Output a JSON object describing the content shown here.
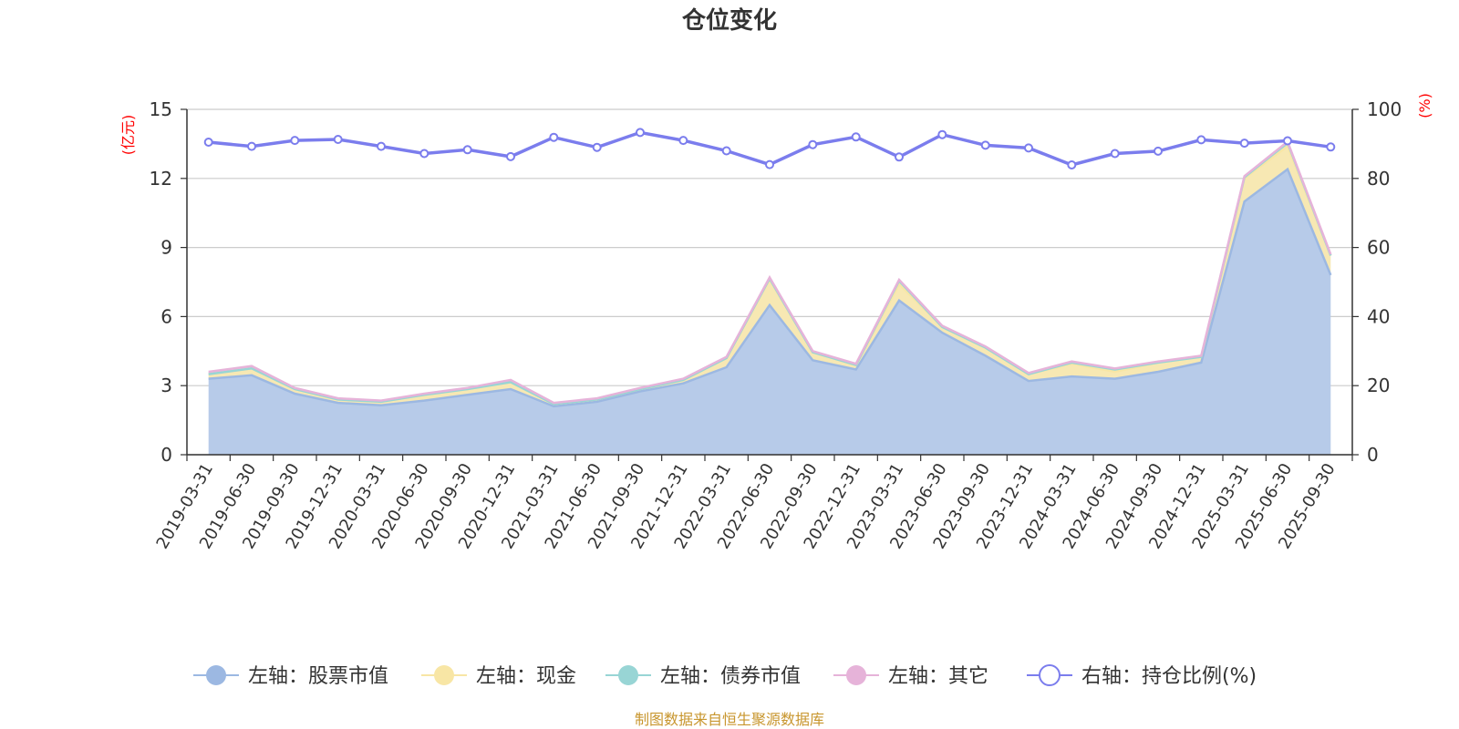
{
  "chart_data": {
    "type": "area",
    "title": "仓位变化",
    "left_axis_unit": "(亿元)",
    "right_axis_unit": "(%)",
    "categories": [
      "2019-03-31",
      "2019-06-30",
      "2019-09-30",
      "2019-12-31",
      "2020-03-31",
      "2020-06-30",
      "2020-09-30",
      "2020-12-31",
      "2021-03-31",
      "2021-06-30",
      "2021-09-30",
      "2021-12-31",
      "2022-03-31",
      "2022-06-30",
      "2022-09-30",
      "2022-12-31",
      "2023-03-31",
      "2023-06-30",
      "2023-09-30",
      "2023-12-31",
      "2024-03-31",
      "2024-06-30",
      "2024-09-30",
      "2024-12-31",
      "2025-03-31",
      "2025-06-30",
      "2025-09-30"
    ],
    "left_ylim": [
      0,
      15
    ],
    "left_ticks": [
      "0",
      "3",
      "6",
      "9",
      "12",
      "15"
    ],
    "right_ylim": [
      0,
      100
    ],
    "right_ticks": [
      "0",
      "20",
      "40",
      "60",
      "80",
      "100"
    ],
    "grid": true,
    "legend_position": "bottom",
    "series": [
      {
        "name": "左轴：股票市值",
        "axis": "left",
        "stacked": true,
        "color": "#9cb8e2",
        "fill": "#b7cbe9",
        "values": [
          3.3,
          3.45,
          2.65,
          2.25,
          2.15,
          2.35,
          2.6,
          2.85,
          2.1,
          2.3,
          2.75,
          3.1,
          3.8,
          6.5,
          4.1,
          3.7,
          6.7,
          5.3,
          4.3,
          3.2,
          3.4,
          3.3,
          3.6,
          4.0,
          11.0,
          12.4,
          7.8
        ]
      },
      {
        "name": "左轴：现金",
        "axis": "left",
        "stacked": true,
        "color": "#f8e6a5",
        "fill": "#f7e8b3",
        "values": [
          0.2,
          0.3,
          0.2,
          0.15,
          0.15,
          0.25,
          0.25,
          0.3,
          0.1,
          0.1,
          0.1,
          0.15,
          0.4,
          1.1,
          0.35,
          0.2,
          0.7,
          0.25,
          0.35,
          0.3,
          0.55,
          0.3,
          0.4,
          0.25,
          1.0,
          1.0,
          0.85
        ]
      },
      {
        "name": "左轴：债券市值",
        "axis": "left",
        "stacked": true,
        "color": "#98d5d5",
        "fill": "#a9dcd9",
        "values": [
          0.0,
          0.0,
          0.0,
          0.0,
          0.0,
          0.0,
          0.0,
          0.0,
          0.0,
          0.0,
          0.0,
          0.0,
          0.0,
          0.05,
          0.0,
          0.0,
          0.15,
          0.0,
          0.0,
          0.0,
          0.05,
          0.1,
          0.0,
          0.0,
          0.05,
          0.15,
          0.0
        ]
      },
      {
        "name": "左轴：其它",
        "axis": "left",
        "stacked": true,
        "color": "#e6b3d9",
        "fill": "#ebbfe0",
        "values": [
          0.1,
          0.1,
          0.05,
          0.05,
          0.05,
          0.05,
          0.05,
          0.1,
          0.05,
          0.05,
          0.05,
          0.05,
          0.05,
          0.05,
          0.05,
          0.05,
          0.05,
          0.05,
          0.05,
          0.05,
          0.05,
          0.05,
          0.05,
          0.05,
          0.05,
          0.05,
          0.05
        ]
      },
      {
        "name": "右轴：持仓比例(%)",
        "axis": "right",
        "type": "line",
        "color": "#7b7ded",
        "values": [
          90.5,
          89.3,
          91.0,
          91.3,
          89.3,
          87.2,
          88.3,
          86.3,
          91.9,
          89.0,
          93.3,
          91.0,
          88.0,
          84.0,
          89.8,
          92.0,
          86.2,
          92.7,
          89.6,
          88.8,
          83.9,
          87.2,
          87.9,
          91.2,
          90.2,
          90.9,
          89.1
        ]
      }
    ]
  },
  "source_note": "制图数据来自恒生聚源数据库",
  "colors": {
    "title": "#333333",
    "unit_label": "#ff0000",
    "source_note": "#c8962e",
    "grid": "#cccccc",
    "axis": "#333333"
  }
}
